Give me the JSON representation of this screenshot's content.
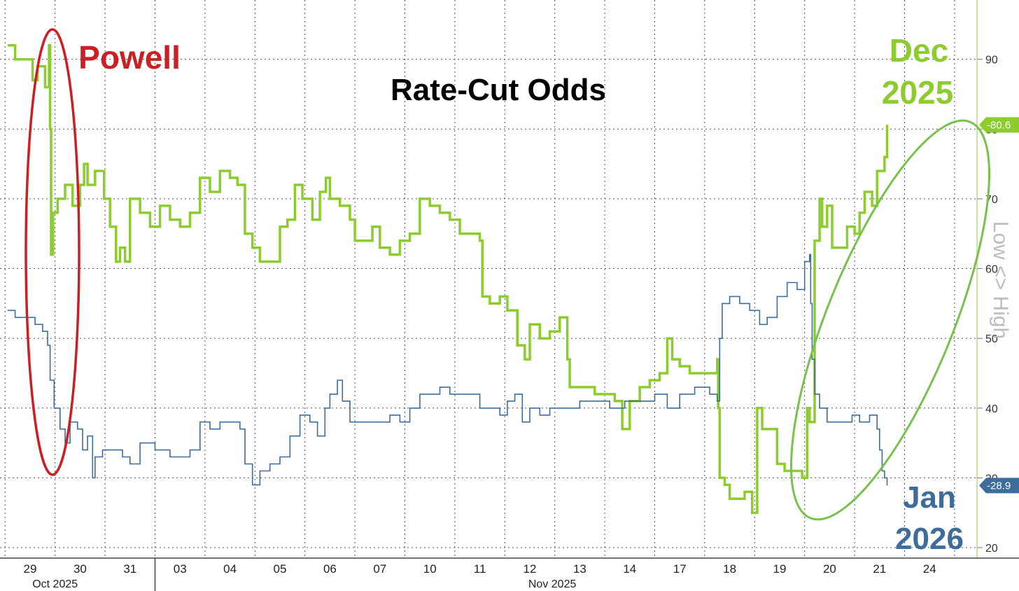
{
  "chart_data": {
    "type": "line",
    "title": "Rate-Cut Odds",
    "ylabel": "Low <> High",
    "ylim": [
      18.5,
      98.5
    ],
    "y_ticks": [
      20,
      30,
      40,
      50,
      60,
      70,
      80,
      90
    ],
    "grid": true,
    "x_dates": [
      "29",
      "30",
      "31",
      "03",
      "04",
      "05",
      "06",
      "07",
      "10",
      "11",
      "12",
      "13",
      "14",
      "17",
      "18",
      "19",
      "20",
      "21",
      "24"
    ],
    "x_months": [
      {
        "label": "Oct 2025",
        "at": "29"
      },
      {
        "label": "Nov 2025",
        "at": "12"
      }
    ],
    "series": [
      {
        "name": "Dec 2025",
        "color": "#8ccc2e",
        "last_value": "80.6",
        "points": [
          [
            -0.45,
            92
          ],
          [
            -0.3,
            90
          ],
          [
            -0.05,
            90
          ],
          [
            0.05,
            87
          ],
          [
            0.15,
            89
          ],
          [
            0.3,
            86
          ],
          [
            0.38,
            92
          ],
          [
            0.4,
            80
          ],
          [
            0.42,
            62
          ],
          [
            0.46,
            68
          ],
          [
            0.55,
            70
          ],
          [
            0.7,
            72
          ],
          [
            0.85,
            69
          ],
          [
            1.0,
            72
          ],
          [
            1.08,
            75
          ],
          [
            1.15,
            72
          ],
          [
            1.3,
            74
          ],
          [
            1.48,
            70
          ],
          [
            1.6,
            66
          ],
          [
            1.72,
            61
          ],
          [
            1.8,
            63
          ],
          [
            1.9,
            61
          ],
          [
            2.0,
            70
          ],
          [
            2.2,
            68
          ],
          [
            2.4,
            66
          ],
          [
            2.6,
            69
          ],
          [
            2.8,
            67
          ],
          [
            3.0,
            66
          ],
          [
            3.2,
            68
          ],
          [
            3.4,
            73
          ],
          [
            3.6,
            71
          ],
          [
            3.8,
            74
          ],
          [
            4.0,
            73
          ],
          [
            4.15,
            72
          ],
          [
            4.3,
            65
          ],
          [
            4.45,
            63
          ],
          [
            4.6,
            61
          ],
          [
            4.8,
            61
          ],
          [
            5.0,
            66
          ],
          [
            5.15,
            67
          ],
          [
            5.3,
            72
          ],
          [
            5.45,
            70
          ],
          [
            5.65,
            67
          ],
          [
            5.8,
            71
          ],
          [
            5.92,
            73
          ],
          [
            6.0,
            70
          ],
          [
            6.2,
            69
          ],
          [
            6.4,
            67
          ],
          [
            6.5,
            64
          ],
          [
            6.7,
            64
          ],
          [
            6.85,
            66
          ],
          [
            7.0,
            63
          ],
          [
            7.2,
            62
          ],
          [
            7.4,
            64
          ],
          [
            7.6,
            65
          ],
          [
            7.8,
            70
          ],
          [
            8.0,
            69
          ],
          [
            8.2,
            68
          ],
          [
            8.4,
            67
          ],
          [
            8.6,
            65
          ],
          [
            8.8,
            65
          ],
          [
            9.0,
            64
          ],
          [
            9.05,
            56
          ],
          [
            9.2,
            55
          ],
          [
            9.4,
            56
          ],
          [
            9.55,
            54
          ],
          [
            9.75,
            49
          ],
          [
            9.9,
            47
          ],
          [
            10.0,
            52
          ],
          [
            10.2,
            50
          ],
          [
            10.4,
            51
          ],
          [
            10.6,
            53
          ],
          [
            10.75,
            47
          ],
          [
            10.8,
            43
          ],
          [
            11.0,
            43
          ],
          [
            11.3,
            42
          ],
          [
            11.5,
            42
          ],
          [
            11.7,
            41
          ],
          [
            11.85,
            37
          ],
          [
            12.0,
            41
          ],
          [
            12.2,
            43
          ],
          [
            12.4,
            44
          ],
          [
            12.6,
            45
          ],
          [
            12.75,
            50
          ],
          [
            12.85,
            47
          ],
          [
            13.0,
            46
          ],
          [
            13.2,
            45
          ],
          [
            13.4,
            45
          ],
          [
            13.6,
            45
          ],
          [
            13.75,
            47
          ],
          [
            13.77,
            40
          ],
          [
            13.8,
            30
          ],
          [
            13.9,
            29
          ],
          [
            14.0,
            27
          ],
          [
            14.1,
            27
          ],
          [
            14.2,
            27
          ],
          [
            14.3,
            28
          ],
          [
            14.45,
            25
          ],
          [
            14.55,
            40
          ],
          [
            14.65,
            37
          ],
          [
            14.8,
            37
          ],
          [
            14.95,
            32
          ],
          [
            15.1,
            31
          ],
          [
            15.3,
            31
          ],
          [
            15.45,
            30
          ],
          [
            15.55,
            40
          ],
          [
            15.6,
            38
          ],
          [
            15.7,
            64
          ],
          [
            15.8,
            70
          ],
          [
            15.85,
            66
          ],
          [
            15.95,
            69
          ],
          [
            16.05,
            63
          ],
          [
            16.2,
            63
          ],
          [
            16.35,
            66
          ],
          [
            16.5,
            65
          ],
          [
            16.6,
            68
          ],
          [
            16.7,
            71
          ],
          [
            16.85,
            69
          ],
          [
            16.95,
            74
          ],
          [
            17.05,
            74
          ],
          [
            17.1,
            76
          ],
          [
            17.15,
            80.6
          ]
        ]
      },
      {
        "name": "Jan 2026",
        "color": "#3e6d9c",
        "last_value": "28.9",
        "points": [
          [
            -0.45,
            54
          ],
          [
            -0.3,
            53
          ],
          [
            -0.1,
            53
          ],
          [
            0.0,
            53
          ],
          [
            0.1,
            52
          ],
          [
            0.25,
            51
          ],
          [
            0.35,
            49
          ],
          [
            0.4,
            44
          ],
          [
            0.48,
            40
          ],
          [
            0.6,
            37
          ],
          [
            0.7,
            35
          ],
          [
            0.8,
            38
          ],
          [
            0.95,
            37
          ],
          [
            1.05,
            34
          ],
          [
            1.15,
            36
          ],
          [
            1.25,
            30
          ],
          [
            1.3,
            33
          ],
          [
            1.45,
            34
          ],
          [
            1.65,
            34
          ],
          [
            1.85,
            33
          ],
          [
            2.0,
            32
          ],
          [
            2.2,
            35
          ],
          [
            2.5,
            34
          ],
          [
            2.8,
            33
          ],
          [
            3.0,
            33
          ],
          [
            3.2,
            34
          ],
          [
            3.4,
            38
          ],
          [
            3.6,
            37
          ],
          [
            3.8,
            38
          ],
          [
            4.0,
            38
          ],
          [
            4.2,
            37
          ],
          [
            4.3,
            32
          ],
          [
            4.45,
            29
          ],
          [
            4.6,
            31
          ],
          [
            4.8,
            32
          ],
          [
            5.0,
            33
          ],
          [
            5.2,
            36
          ],
          [
            5.4,
            39
          ],
          [
            5.6,
            38
          ],
          [
            5.75,
            36
          ],
          [
            5.9,
            40
          ],
          [
            6.0,
            42
          ],
          [
            6.15,
            44
          ],
          [
            6.25,
            41
          ],
          [
            6.4,
            38
          ],
          [
            6.7,
            38
          ],
          [
            7.0,
            38
          ],
          [
            7.2,
            39
          ],
          [
            7.4,
            38
          ],
          [
            7.6,
            40
          ],
          [
            7.8,
            42
          ],
          [
            8.0,
            42
          ],
          [
            8.2,
            43
          ],
          [
            8.4,
            42
          ],
          [
            8.6,
            42
          ],
          [
            8.8,
            42
          ],
          [
            9.0,
            40
          ],
          [
            9.2,
            40
          ],
          [
            9.4,
            39
          ],
          [
            9.55,
            41
          ],
          [
            9.7,
            42
          ],
          [
            9.85,
            38
          ],
          [
            10.0,
            40
          ],
          [
            10.2,
            39
          ],
          [
            10.4,
            40
          ],
          [
            10.6,
            40
          ],
          [
            10.8,
            40
          ],
          [
            11.0,
            41
          ],
          [
            11.3,
            41
          ],
          [
            11.6,
            40
          ],
          [
            11.9,
            41
          ],
          [
            12.2,
            41
          ],
          [
            12.5,
            42
          ],
          [
            12.75,
            40
          ],
          [
            13.0,
            42
          ],
          [
            13.3,
            43
          ],
          [
            13.6,
            42
          ],
          [
            13.75,
            41
          ],
          [
            13.8,
            50
          ],
          [
            13.85,
            55
          ],
          [
            14.0,
            56
          ],
          [
            14.2,
            55
          ],
          [
            14.4,
            54
          ],
          [
            14.6,
            52
          ],
          [
            14.75,
            53
          ],
          [
            14.95,
            56
          ],
          [
            15.15,
            58
          ],
          [
            15.35,
            57
          ],
          [
            15.5,
            61
          ],
          [
            15.6,
            62
          ],
          [
            15.62,
            55
          ],
          [
            15.65,
            47
          ],
          [
            15.7,
            42
          ],
          [
            15.8,
            40
          ],
          [
            15.95,
            38
          ],
          [
            16.1,
            38
          ],
          [
            16.3,
            38
          ],
          [
            16.45,
            39
          ],
          [
            16.6,
            38
          ],
          [
            16.8,
            39
          ],
          [
            16.95,
            37
          ],
          [
            17.0,
            34
          ],
          [
            17.05,
            31
          ],
          [
            17.1,
            30
          ],
          [
            17.15,
            28.9
          ]
        ]
      }
    ],
    "annotations": [
      {
        "text": "Powell",
        "color": "#cc1f24"
      },
      {
        "text": "Dec",
        "color": "#8ccc2e"
      },
      {
        "text": "2025",
        "color": "#8ccc2e"
      },
      {
        "text": "Jan",
        "color": "#3e6d9c"
      },
      {
        "text": "2026",
        "color": "#3e6d9c"
      }
    ]
  }
}
